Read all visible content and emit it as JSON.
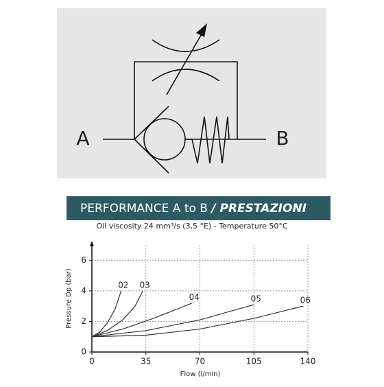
{
  "diagram": {
    "port_a": "A",
    "port_b": "B"
  },
  "chart_data": {
    "type": "line",
    "title": "PERFORMANCE A to B",
    "title_emphasis": "/ PRESTAZIONI",
    "subtitle": "Oil viscosity 24 mm³/s (3,5 °E) - Temperature 50°C",
    "x_label": "Flow (l/min)",
    "y_label": "Pressure  Dp (bar)",
    "xlim": [
      0,
      140
    ],
    "xticks": [
      0,
      35,
      70,
      105,
      140
    ],
    "ylim": [
      0,
      7
    ],
    "yticks": [
      0,
      2,
      4,
      6
    ],
    "grid": true,
    "series": [
      {
        "name": "02",
        "color": "#333333",
        "x": [
          0,
          5,
          10,
          15,
          19
        ],
        "values": [
          1,
          1.3,
          1.9,
          2.8,
          4
        ]
      },
      {
        "name": "03",
        "color": "#333333",
        "x": [
          0,
          10,
          20,
          28,
          33
        ],
        "values": [
          1,
          1.4,
          2.1,
          3,
          4
        ]
      },
      {
        "name": "04",
        "color": "#333333",
        "x": [
          0,
          20,
          40,
          65
        ],
        "values": [
          1,
          1.5,
          2.2,
          3.2
        ]
      },
      {
        "name": "05",
        "color": "#333333",
        "x": [
          0,
          35,
          70,
          105
        ],
        "values": [
          1,
          1.4,
          2.1,
          3.1
        ]
      },
      {
        "name": "06",
        "color": "#333333",
        "x": [
          0,
          35,
          70,
          105,
          137
        ],
        "values": [
          1,
          1.1,
          1.5,
          2.2,
          3
        ]
      }
    ]
  }
}
